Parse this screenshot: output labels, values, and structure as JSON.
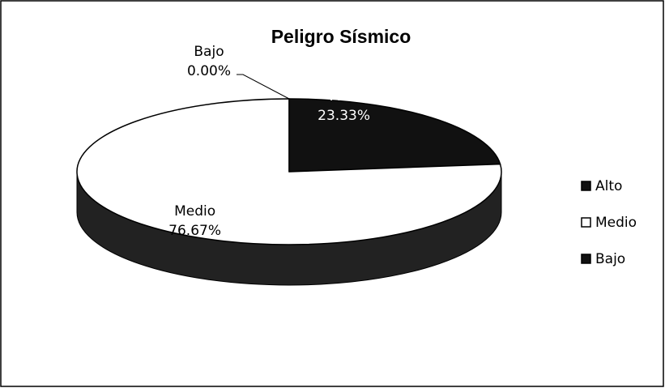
{
  "chart_data": {
    "type": "pie",
    "title": "Peligro Sísmico",
    "categories": [
      "Alto",
      "Medio",
      "Bajo"
    ],
    "values": [
      23.33,
      76.67,
      0.0
    ],
    "value_labels": [
      "23.33%",
      "76.67%",
      "0.00%"
    ],
    "colors": [
      "#111111",
      "#ffffff",
      "#111111"
    ],
    "legend": "right"
  }
}
